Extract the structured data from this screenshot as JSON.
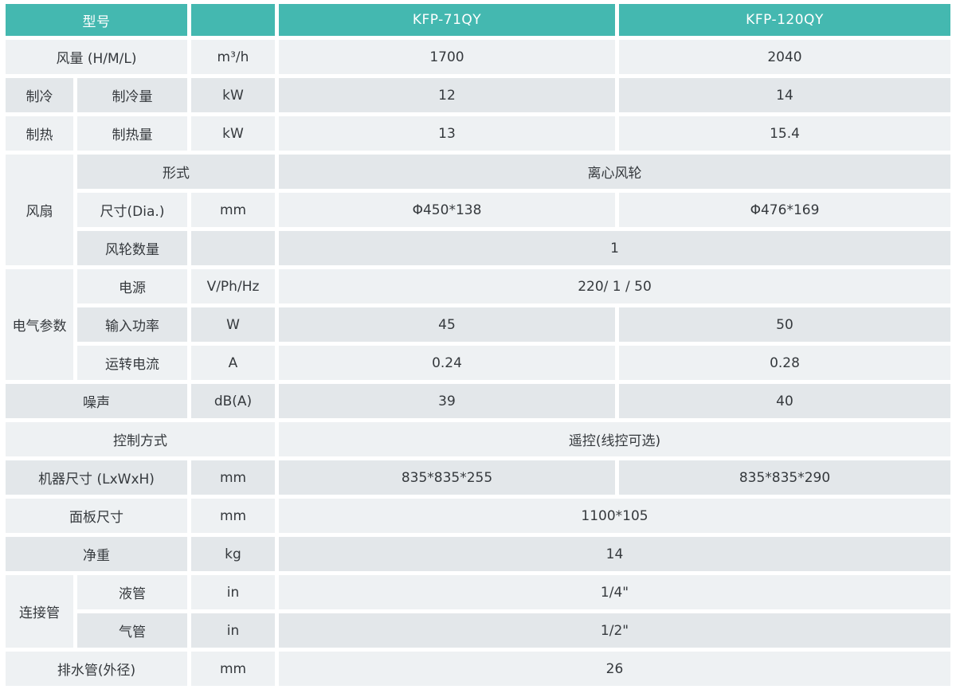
{
  "colors": {
    "header_bg": "#44b8b0",
    "header_text": "#ffffff",
    "row_light": "#eef1f3",
    "row_dark": "#e3e7ea",
    "body_text": "#35393d",
    "gap": "#ffffff"
  },
  "header": {
    "model_label": "型号",
    "unit_col": "",
    "models": [
      "KFP-71QY",
      "KFP-120QY"
    ]
  },
  "rows": [
    {
      "label": "风量 (H/M/L)",
      "unit": "m³/h",
      "v1": "1700",
      "v2": "2040"
    },
    {
      "group": "制冷",
      "label": "制冷量",
      "unit": "kW",
      "v1": "12",
      "v2": "14"
    },
    {
      "group": "制热",
      "label": "制热量",
      "unit": "kW",
      "v1": "13",
      "v2": "15.4"
    },
    {
      "group": "风扇",
      "label": "形式",
      "merged": "离心风轮"
    },
    {
      "label": "尺寸(Dia.)",
      "unit": "mm",
      "v1": "Φ450*138",
      "v2": "Φ476*169"
    },
    {
      "label": "风轮数量",
      "unit": "",
      "merged": "1"
    },
    {
      "group": "电气参数",
      "label": "电源",
      "unit": "V/Ph/Hz",
      "merged": "220/ 1 / 50"
    },
    {
      "label": "输入功率",
      "unit": "W",
      "v1": "45",
      "v2": "50"
    },
    {
      "label": "运转电流",
      "unit": "A",
      "v1": "0.24",
      "v2": "0.28"
    },
    {
      "label": "噪声",
      "unit": "dB(A)",
      "v1": "39",
      "v2": "40"
    },
    {
      "label": "控制方式",
      "merged": "遥控(线控可选)"
    },
    {
      "label": "机器尺寸 (LxWxH)",
      "unit": "mm",
      "v1": "835*835*255",
      "v2": "835*835*290"
    },
    {
      "label": "面板尺寸",
      "unit": "mm",
      "merged": "1100*105"
    },
    {
      "label": "净重",
      "unit": "kg",
      "merged": "14"
    },
    {
      "group": "连接管",
      "label": "液管",
      "unit": "in",
      "merged": "1/4\""
    },
    {
      "label": "气管",
      "unit": "in",
      "merged": "1/2\""
    },
    {
      "label": "排水管(外径)",
      "unit": "mm",
      "merged": "26"
    }
  ]
}
